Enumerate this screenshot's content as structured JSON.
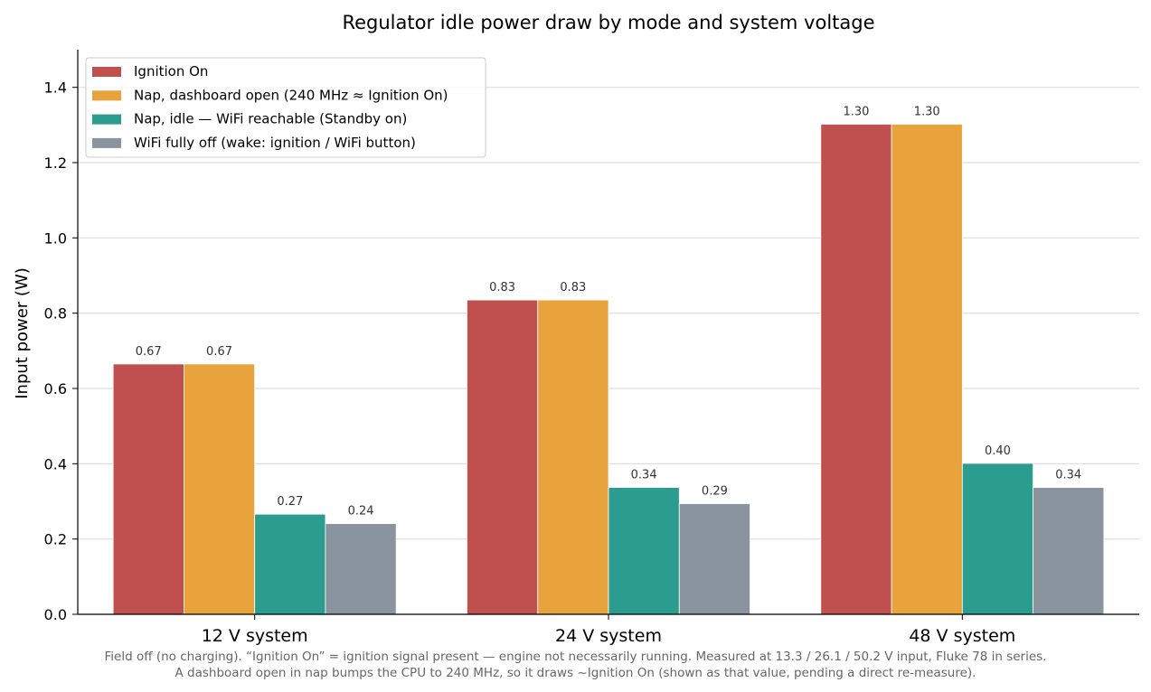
{
  "chart_data": {
    "type": "bar",
    "title": "Regulator idle power draw by mode and system voltage",
    "xlabel": "",
    "ylabel": "Input power (W)",
    "ylim": [
      0,
      1.5
    ],
    "yticks": [
      "0.0",
      "0.2",
      "0.4",
      "0.6",
      "0.8",
      "1.0",
      "1.2",
      "1.4"
    ],
    "grid": "horizontal",
    "legend_position": "top-left",
    "categories": [
      "12 V system",
      "24 V system",
      "48 V system"
    ],
    "series": [
      {
        "name": "Ignition On",
        "color": "#c0504d",
        "values": [
          0.665,
          0.835,
          1.302
        ],
        "labels": [
          "0.67",
          "0.83",
          "1.30"
        ]
      },
      {
        "name": "Nap, dashboard open (240 MHz ≈ Ignition On)",
        "color": "#e8a33c",
        "values": [
          0.665,
          0.835,
          1.302
        ],
        "labels": [
          "0.67",
          "0.83",
          "1.30"
        ]
      },
      {
        "name": "Nap, idle — WiFi reachable (Standby on)",
        "color": "#2a9d8f",
        "values": [
          0.266,
          0.337,
          0.401
        ],
        "labels": [
          "0.27",
          "0.34",
          "0.40"
        ]
      },
      {
        "name": "WiFi fully off (wake: ignition / WiFi button)",
        "color": "#8a949e",
        "values": [
          0.241,
          0.294,
          0.337
        ],
        "labels": [
          "0.24",
          "0.29",
          "0.34"
        ]
      }
    ]
  },
  "caption": {
    "line1": "Field off (no charging). “Ignition On” = ignition signal present — engine not necessarily running.  Measured at 13.3 / 26.1 / 50.2 V input, Fluke 78 in series.",
    "line2": "A dashboard open in nap bumps the CPU to 240 MHz, so it draws ~Ignition On (shown as that value, pending a direct re-measure)."
  }
}
